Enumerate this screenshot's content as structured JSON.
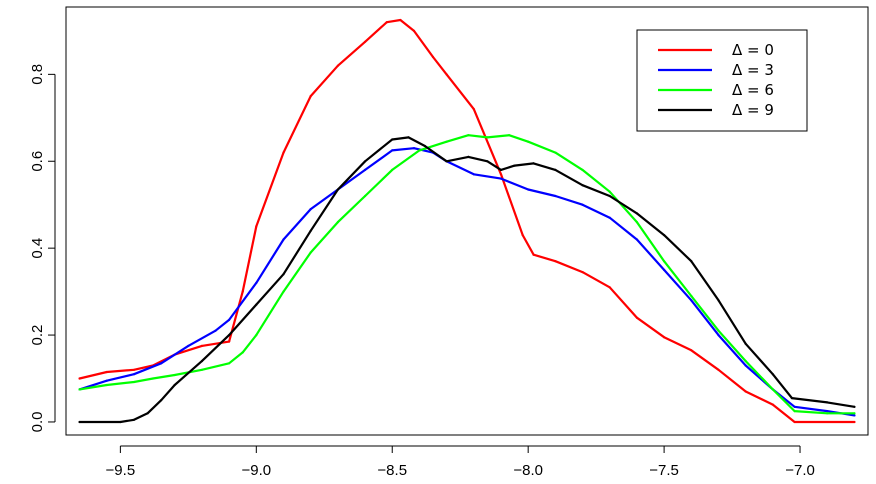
{
  "chart_data": {
    "type": "line",
    "title": "",
    "xlabel": "",
    "ylabel": "",
    "xlim": [
      -9.7,
      -6.75
    ],
    "ylim": [
      -0.03,
      0.955
    ],
    "xticks": [
      -9.5,
      -9.0,
      -8.5,
      -8.0,
      -7.5,
      -7.0
    ],
    "xtick_labels": [
      "−9.5",
      "−9.0",
      "−8.5",
      "−8.0",
      "−7.5",
      "−7.0"
    ],
    "yticks": [
      0.0,
      0.2,
      0.4,
      0.6,
      0.8
    ],
    "ytick_labels": [
      "0.0",
      "0.2",
      "0.4",
      "0.6",
      "0.8"
    ],
    "grid": false,
    "legend_position": "top-right",
    "series": [
      {
        "name": "Δ = 0",
        "color": "#ff0000",
        "x": [
          -9.65,
          -9.55,
          -9.45,
          -9.38,
          -9.3,
          -9.2,
          -9.1,
          -9.05,
          -9.0,
          -8.9,
          -8.8,
          -8.7,
          -8.6,
          -8.52,
          -8.47,
          -8.42,
          -8.35,
          -8.3,
          -8.2,
          -8.1,
          -8.02,
          -7.98,
          -7.9,
          -7.8,
          -7.7,
          -7.6,
          -7.5,
          -7.4,
          -7.3,
          -7.2,
          -7.1,
          -7.02,
          -6.8
        ],
        "y": [
          0.1,
          0.115,
          0.12,
          0.13,
          0.155,
          0.175,
          0.185,
          0.3,
          0.45,
          0.62,
          0.75,
          0.82,
          0.875,
          0.92,
          0.925,
          0.9,
          0.84,
          0.8,
          0.72,
          0.57,
          0.43,
          0.385,
          0.37,
          0.345,
          0.31,
          0.24,
          0.195,
          0.165,
          0.12,
          0.07,
          0.04,
          0.0,
          0.0
        ]
      },
      {
        "name": "Δ = 3",
        "color": "#0000ff",
        "x": [
          -9.65,
          -9.55,
          -9.45,
          -9.35,
          -9.25,
          -9.15,
          -9.1,
          -9.0,
          -8.9,
          -8.8,
          -8.7,
          -8.6,
          -8.5,
          -8.42,
          -8.35,
          -8.3,
          -8.2,
          -8.1,
          -8.0,
          -7.9,
          -7.8,
          -7.7,
          -7.6,
          -7.5,
          -7.4,
          -7.3,
          -7.2,
          -7.1,
          -7.02,
          -6.9,
          -6.8
        ],
        "y": [
          0.075,
          0.095,
          0.11,
          0.135,
          0.175,
          0.21,
          0.235,
          0.32,
          0.42,
          0.49,
          0.535,
          0.58,
          0.625,
          0.63,
          0.62,
          0.6,
          0.57,
          0.56,
          0.535,
          0.52,
          0.5,
          0.47,
          0.42,
          0.35,
          0.28,
          0.2,
          0.13,
          0.075,
          0.035,
          0.025,
          0.015
        ]
      },
      {
        "name": "Δ = 6",
        "color": "#00ff00",
        "x": [
          -9.65,
          -9.55,
          -9.45,
          -9.38,
          -9.3,
          -9.2,
          -9.1,
          -9.05,
          -9.0,
          -8.9,
          -8.8,
          -8.7,
          -8.6,
          -8.5,
          -8.4,
          -8.3,
          -8.22,
          -8.15,
          -8.07,
          -8.0,
          -7.9,
          -7.8,
          -7.7,
          -7.6,
          -7.5,
          -7.4,
          -7.3,
          -7.2,
          -7.1,
          -7.02,
          -6.9,
          -6.8
        ],
        "y": [
          0.075,
          0.085,
          0.092,
          0.1,
          0.108,
          0.12,
          0.135,
          0.16,
          0.2,
          0.3,
          0.39,
          0.46,
          0.52,
          0.58,
          0.625,
          0.645,
          0.66,
          0.655,
          0.66,
          0.645,
          0.62,
          0.58,
          0.53,
          0.46,
          0.37,
          0.29,
          0.21,
          0.14,
          0.075,
          0.025,
          0.02,
          0.02
        ]
      },
      {
        "name": "Δ = 9",
        "color": "#000000",
        "x": [
          -9.65,
          -9.5,
          -9.45,
          -9.4,
          -9.35,
          -9.3,
          -9.2,
          -9.1,
          -9.0,
          -8.9,
          -8.8,
          -8.7,
          -8.6,
          -8.5,
          -8.44,
          -8.38,
          -8.3,
          -8.22,
          -8.15,
          -8.1,
          -8.05,
          -7.98,
          -7.9,
          -7.8,
          -7.7,
          -7.6,
          -7.5,
          -7.4,
          -7.3,
          -7.2,
          -7.1,
          -7.03,
          -6.9,
          -6.8
        ],
        "y": [
          0.0,
          0.0,
          0.005,
          0.02,
          0.05,
          0.085,
          0.14,
          0.2,
          0.27,
          0.34,
          0.44,
          0.535,
          0.6,
          0.65,
          0.655,
          0.635,
          0.6,
          0.61,
          0.6,
          0.58,
          0.59,
          0.595,
          0.58,
          0.545,
          0.52,
          0.48,
          0.43,
          0.37,
          0.28,
          0.18,
          0.11,
          0.055,
          0.045,
          0.035
        ]
      }
    ]
  }
}
